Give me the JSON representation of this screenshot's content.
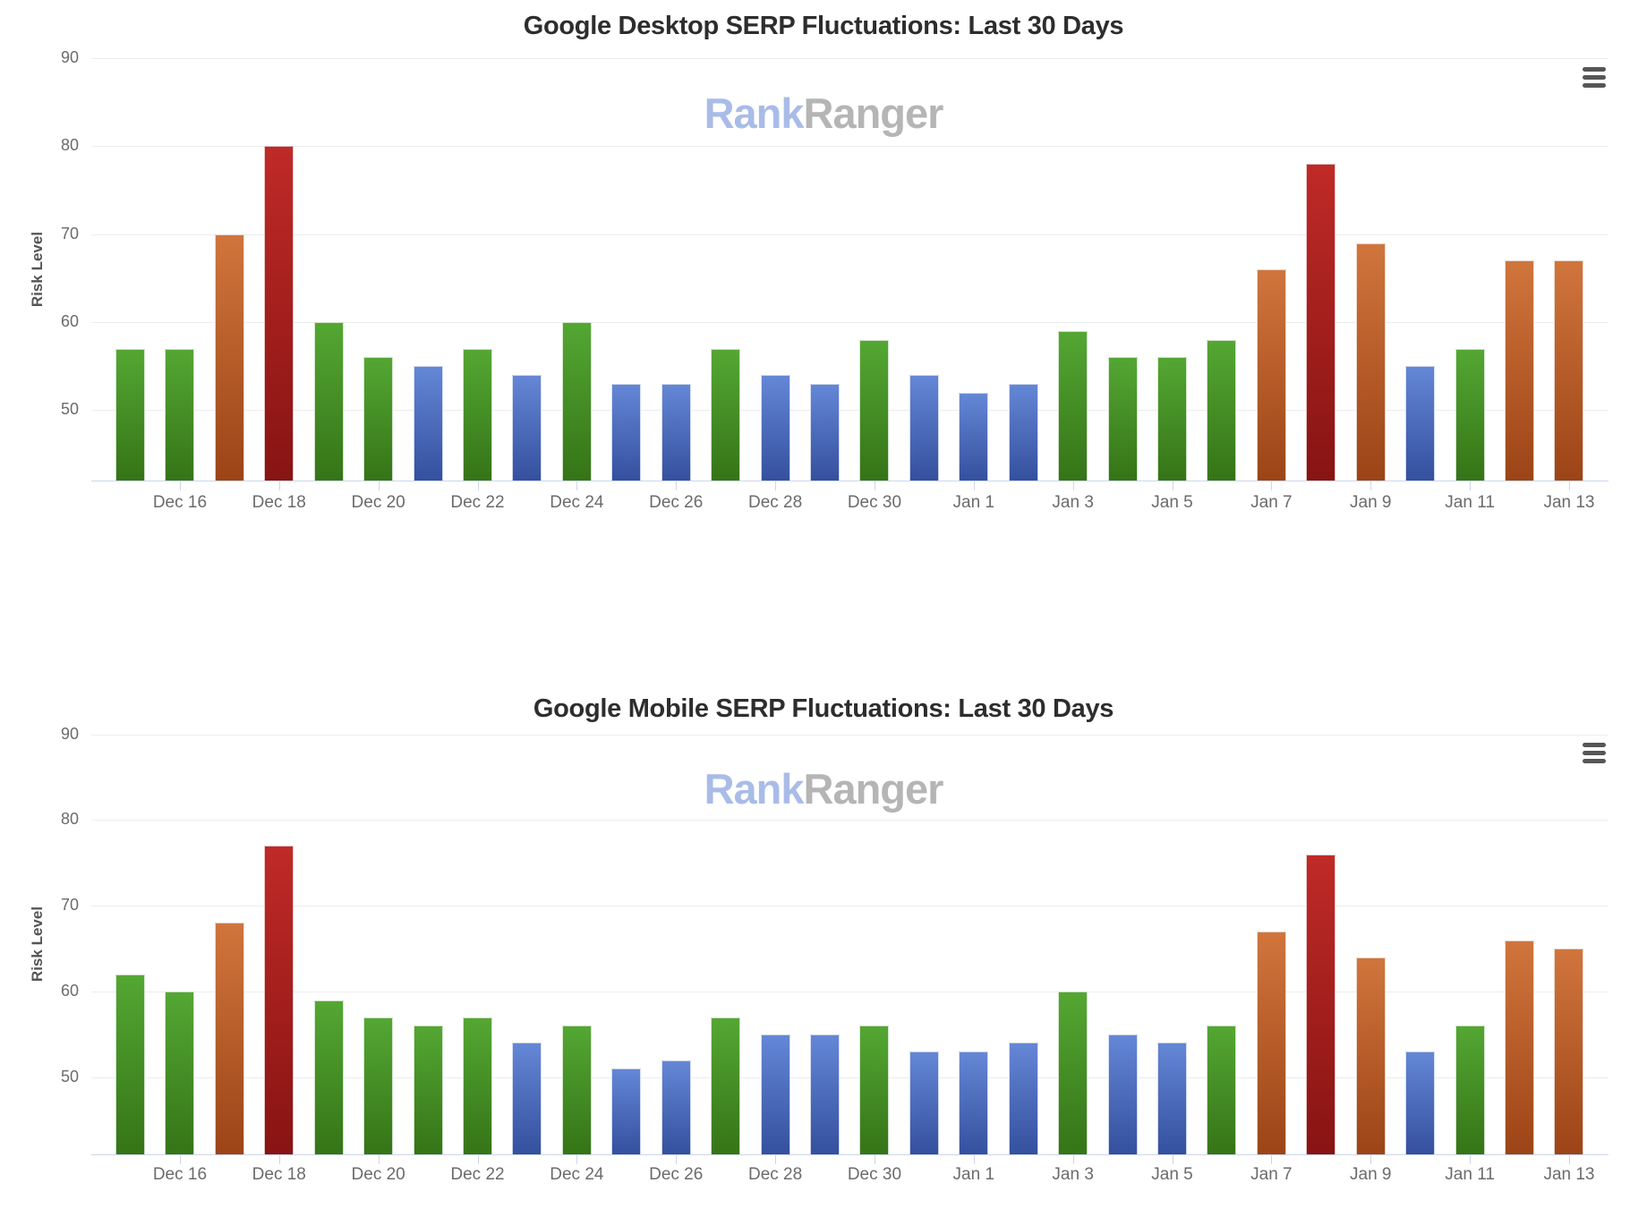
{
  "charts": [
    {
      "watermark": {
        "rank": "Rank",
        "ranger": "Ranger"
      },
      "menu_icon": "hamburger-menu-icon"
    },
    {
      "watermark": {
        "rank": "Rank",
        "ranger": "Ranger"
      },
      "menu_icon": "hamburger-menu-icon"
    }
  ],
  "chart_data": [
    {
      "type": "bar",
      "title": "Google Desktop SERP Fluctuations: Last 30 Days",
      "xlabel": "",
      "ylabel": "Risk Level",
      "x": [
        "Dec 15",
        "Dec 16",
        "Dec 17",
        "Dec 18",
        "Dec 19",
        "Dec 20",
        "Dec 21",
        "Dec 22",
        "Dec 23",
        "Dec 24",
        "Dec 25",
        "Dec 26",
        "Dec 27",
        "Dec 28",
        "Dec 29",
        "Dec 30",
        "Dec 31",
        "Jan 1",
        "Jan 2",
        "Jan 3",
        "Jan 4",
        "Jan 5",
        "Jan 6",
        "Jan 7",
        "Jan 8",
        "Jan 9",
        "Jan 10",
        "Jan 11",
        "Jan 12",
        "Jan 13"
      ],
      "values": [
        57,
        57,
        70,
        80,
        60,
        56,
        55,
        57,
        54,
        60,
        53,
        53,
        57,
        54,
        53,
        58,
        54,
        52,
        53,
        59,
        56,
        56,
        58,
        66,
        78,
        69,
        55,
        57,
        67,
        67
      ],
      "point_colors": [
        "green",
        "green",
        "orange",
        "red",
        "green",
        "green",
        "blue",
        "green",
        "blue",
        "green",
        "blue",
        "blue",
        "green",
        "blue",
        "blue",
        "green",
        "blue",
        "blue",
        "blue",
        "green",
        "green",
        "green",
        "green",
        "orange",
        "red",
        "orange",
        "blue",
        "green",
        "orange",
        "orange"
      ],
      "xtick_labels": [
        "Dec 16",
        "Dec 18",
        "Dec 20",
        "Dec 22",
        "Dec 24",
        "Dec 26",
        "Dec 28",
        "Dec 30",
        "Jan 1",
        "Jan 3",
        "Jan 5",
        "Jan 7",
        "Jan 9",
        "Jan 11",
        "Jan 13"
      ],
      "yticks": [
        50,
        60,
        70,
        80,
        90
      ],
      "ylim": [
        42,
        90
      ],
      "grid": true,
      "legend": false
    },
    {
      "type": "bar",
      "title": "Google Mobile SERP Fluctuations: Last 30 Days",
      "xlabel": "",
      "ylabel": "Risk Level",
      "x": [
        "Dec 15",
        "Dec 16",
        "Dec 17",
        "Dec 18",
        "Dec 19",
        "Dec 20",
        "Dec 21",
        "Dec 22",
        "Dec 23",
        "Dec 24",
        "Dec 25",
        "Dec 26",
        "Dec 27",
        "Dec 28",
        "Dec 29",
        "Dec 30",
        "Dec 31",
        "Jan 1",
        "Jan 2",
        "Jan 3",
        "Jan 4",
        "Jan 5",
        "Jan 6",
        "Jan 7",
        "Jan 8",
        "Jan 9",
        "Jan 10",
        "Jan 11",
        "Jan 12",
        "Jan 13"
      ],
      "values": [
        62,
        60,
        68,
        77,
        59,
        57,
        56,
        57,
        54,
        56,
        51,
        52,
        57,
        55,
        55,
        56,
        53,
        53,
        54,
        60,
        55,
        54,
        56,
        67,
        76,
        64,
        53,
        56,
        66,
        65
      ],
      "point_colors": [
        "green",
        "green",
        "orange",
        "red",
        "green",
        "green",
        "green",
        "green",
        "blue",
        "green",
        "blue",
        "blue",
        "green",
        "blue",
        "blue",
        "green",
        "blue",
        "blue",
        "blue",
        "green",
        "blue",
        "blue",
        "green",
        "orange",
        "red",
        "orange",
        "blue",
        "green",
        "orange",
        "orange"
      ],
      "xtick_labels": [
        "Dec 16",
        "Dec 18",
        "Dec 20",
        "Dec 22",
        "Dec 24",
        "Dec 26",
        "Dec 28",
        "Dec 30",
        "Jan 1",
        "Jan 3",
        "Jan 5",
        "Jan 7",
        "Jan 9",
        "Jan 11",
        "Jan 13"
      ],
      "yticks": [
        50,
        60,
        70,
        80,
        90
      ],
      "ylim": [
        41,
        90
      ],
      "grid": true,
      "legend": false
    }
  ],
  "palette": {
    "green": {
      "top": "#54a733",
      "bottom": "#357417"
    },
    "blue": {
      "top": "#6487d6",
      "bottom": "#34509e"
    },
    "orange": {
      "top": "#d0753c",
      "bottom": "#9c4417"
    },
    "red": {
      "top": "#bf2a27",
      "bottom": "#871413"
    },
    "gridline": "#ededed",
    "axis_line": "#ccd6eb",
    "tick_label": "#6b6b6b",
    "title_text": "#2d2d2d",
    "watermark_rank": "#a9bce7",
    "watermark_ranger": "#b5b5b5",
    "menu_icon": "#565656"
  }
}
